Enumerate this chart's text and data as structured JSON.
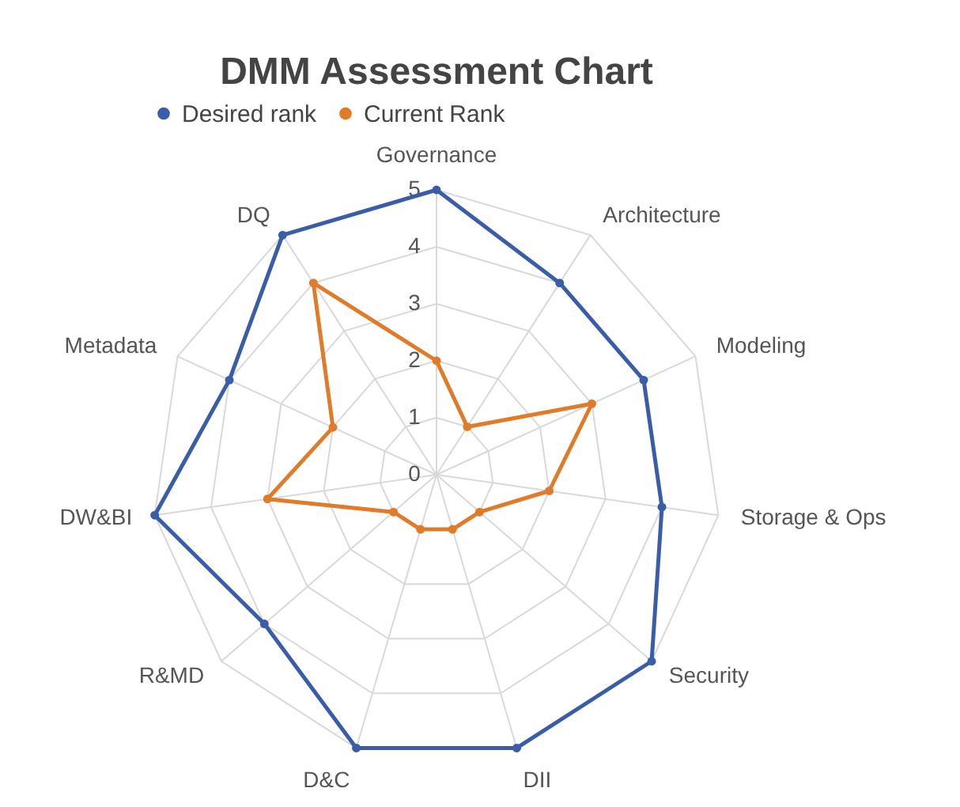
{
  "chart_data": {
    "type": "radar",
    "title": "DMM Assessment Chart",
    "categories": [
      "Governance",
      "Architecture",
      "Modeling",
      "Storage & Ops",
      "Security",
      "DII",
      "D&C",
      "R&MD",
      "DW&BI",
      "Metadata",
      "DQ"
    ],
    "series": [
      {
        "name": "Desired rank",
        "color": "#3a5da8",
        "values": [
          5,
          4,
          4,
          4,
          5,
          5,
          5,
          4,
          5,
          4,
          5
        ]
      },
      {
        "name": "Current Rank",
        "color": "#e07b2a",
        "values": [
          2,
          1,
          3,
          2,
          1,
          1,
          1,
          1,
          3,
          2,
          4
        ]
      }
    ],
    "ylim": [
      0,
      5
    ],
    "yticks": [
      0,
      1,
      2,
      3,
      4,
      5
    ],
    "grid": true,
    "legend": "top",
    "marker": "circle",
    "line_style": "solid"
  }
}
